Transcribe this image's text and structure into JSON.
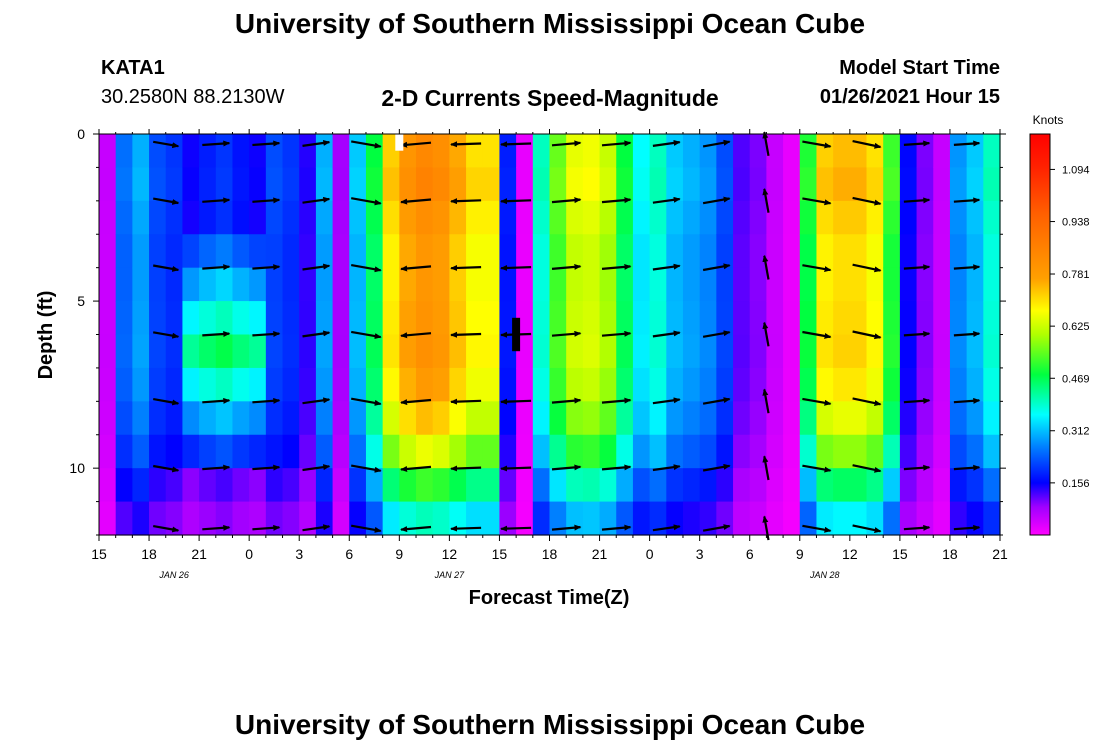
{
  "page": {
    "title_top": "University of Southern Mississippi Ocean Cube",
    "title_bottom": "University of Southern Mississippi Ocean Cube",
    "station": {
      "name": "KATA1",
      "coords": "30.2580N 88.2130W"
    },
    "model_start": {
      "label": "Model Start Time",
      "value": "01/26/2021 Hour 15"
    }
  },
  "colors": {
    "arrow": "#000000",
    "marker_now": "#000000",
    "marker_top": "#ffffff"
  },
  "chart_data": {
    "type": "heatmap",
    "title": "2-D Currents Speed-Magnitude",
    "xlabel": "Forecast Time(Z)",
    "ylabel": "Depth (ft)",
    "colorbar_label": "Knots",
    "colorbar_ticks": [
      0.156,
      0.312,
      0.469,
      0.625,
      0.781,
      0.938,
      1.094
    ],
    "colorbar_range": [
      0.0,
      1.2
    ],
    "xlim": [
      0,
      54
    ],
    "ylim": [
      0,
      12
    ],
    "x_ticks": [
      {
        "x": 0,
        "label": "15"
      },
      {
        "x": 3,
        "label": "18"
      },
      {
        "x": 6,
        "label": "21"
      },
      {
        "x": 9,
        "label": "0"
      },
      {
        "x": 12,
        "label": "3"
      },
      {
        "x": 15,
        "label": "6"
      },
      {
        "x": 18,
        "label": "9"
      },
      {
        "x": 21,
        "label": "12"
      },
      {
        "x": 24,
        "label": "15"
      },
      {
        "x": 27,
        "label": "18"
      },
      {
        "x": 30,
        "label": "21"
      },
      {
        "x": 33,
        "label": "0"
      },
      {
        "x": 36,
        "label": "3"
      },
      {
        "x": 39,
        "label": "6"
      },
      {
        "x": 42,
        "label": "9"
      },
      {
        "x": 45,
        "label": "12"
      },
      {
        "x": 48,
        "label": "15"
      },
      {
        "x": 51,
        "label": "18"
      },
      {
        "x": 54,
        "label": "21"
      }
    ],
    "day_labels": [
      {
        "x": 4.5,
        "label": "JAN  26"
      },
      {
        "x": 21,
        "label": "JAN  27"
      },
      {
        "x": 43.5,
        "label": "JAN  28"
      }
    ],
    "y_ticks": [
      {
        "y": 0,
        "label": "0"
      },
      {
        "y": 5,
        "label": "5"
      },
      {
        "y": 10,
        "label": "10"
      }
    ],
    "depths_ft": [
      0,
      1,
      2,
      3,
      4,
      5,
      6,
      7,
      8,
      9,
      10,
      11
    ],
    "hour_offsets": [
      0,
      1,
      2,
      3,
      4,
      5,
      6,
      7,
      8,
      9,
      10,
      11,
      12,
      13,
      14,
      15,
      16,
      17,
      18,
      19,
      20,
      21,
      22,
      23,
      24,
      25,
      26,
      27,
      28,
      29,
      30,
      31,
      32,
      33,
      34,
      35,
      36,
      37,
      38,
      39,
      40,
      41,
      42,
      43,
      44,
      45,
      46,
      47,
      48,
      49,
      50,
      51,
      52,
      53
    ],
    "speed_profile_by_hour": [
      0.05,
      0.25,
      0.3,
      0.22,
      0.2,
      0.15,
      0.18,
      0.2,
      0.17,
      0.15,
      0.22,
      0.2,
      0.14,
      0.3,
      0.08,
      0.32,
      0.48,
      0.72,
      0.8,
      0.84,
      0.82,
      0.76,
      0.7,
      0.7,
      0.18,
      0.02,
      0.4,
      0.55,
      0.65,
      0.66,
      0.62,
      0.48,
      0.36,
      0.4,
      0.32,
      0.3,
      0.28,
      0.22,
      0.12,
      0.1,
      0.05,
      0.02,
      0.5,
      0.72,
      0.74,
      0.74,
      0.7,
      0.52,
      0.16,
      0.1,
      0.05,
      0.28,
      0.32,
      0.4
    ],
    "speed_depth_factor": [
      1.0,
      1.02,
      0.98,
      0.95,
      0.95,
      0.96,
      0.97,
      0.94,
      0.88,
      0.78,
      0.62,
      0.48
    ],
    "speed_bulge_hours": [
      5,
      6,
      7,
      8,
      9
    ],
    "speed_bulge_center_depth": 6,
    "speed_bulge_amount": 0.28,
    "arrow_rows_ft": [
      0.3,
      2,
      4,
      6,
      8,
      10,
      11.8
    ],
    "arrow_cols_hours": [
      4,
      7,
      10,
      13,
      16,
      19,
      22,
      25,
      28,
      31,
      34,
      37,
      40,
      43,
      46,
      49,
      52
    ],
    "arrow_dir_deg_by_col": [
      -10,
      4,
      4,
      8,
      -10,
      -175,
      -178,
      -178,
      5,
      5,
      8,
      10,
      100,
      -10,
      -12,
      4,
      4
    ],
    "arrow_length_by_col": [
      0.85,
      0.9,
      0.9,
      0.9,
      1.0,
      1.0,
      1.0,
      1.0,
      0.95,
      0.95,
      0.9,
      0.9,
      0.8,
      0.95,
      0.95,
      0.85,
      0.85
    ],
    "markers": [
      {
        "name": "forecast-now-marker",
        "x": 25,
        "y_from": 5.5,
        "y_to": 6.5,
        "kind": "now"
      },
      {
        "name": "top-marker",
        "x": 18,
        "y_from": 0,
        "y_to": 0.5,
        "kind": "top"
      }
    ]
  }
}
